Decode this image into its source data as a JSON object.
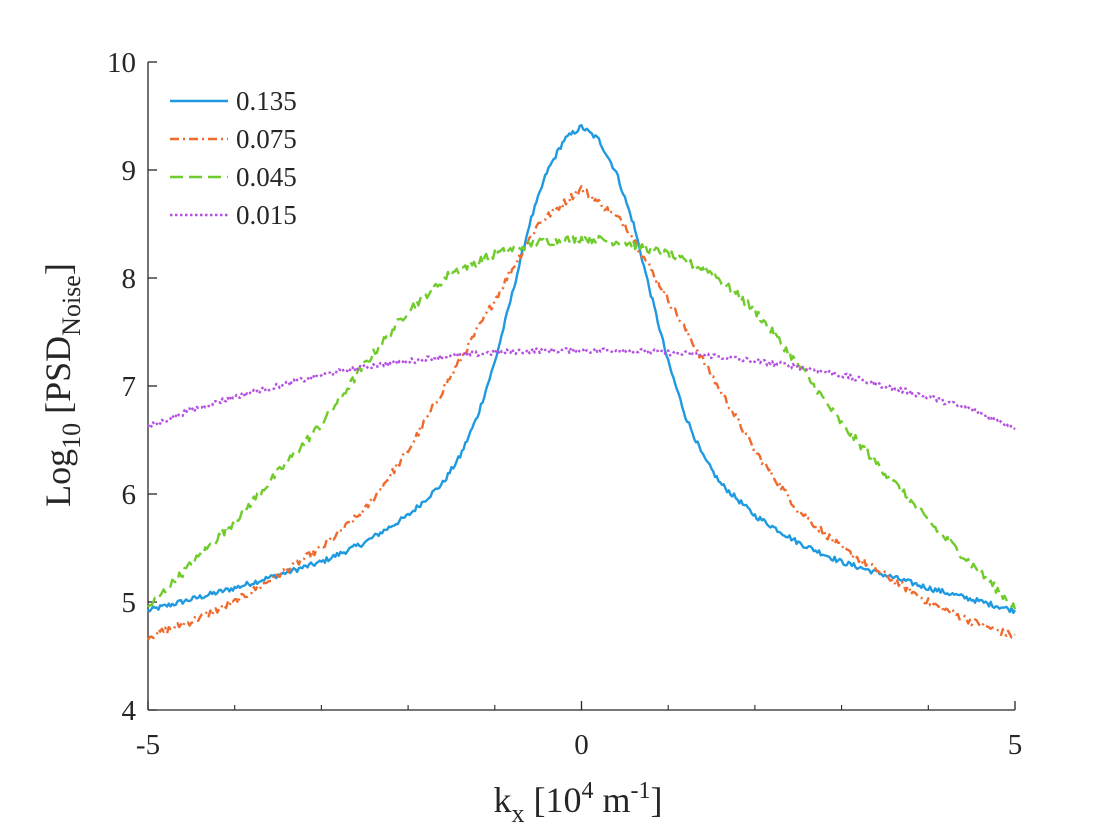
{
  "chart_data": {
    "type": "line",
    "title": "",
    "xlabel": "k_x [10^4 m^-1]",
    "ylabel": "Log_10 [PSD_Noise]",
    "axis_labels": {
      "x_main": "k",
      "x_sub": "x",
      "x_rest1": " [10",
      "x_sup1": "4",
      "x_rest2": " m",
      "x_sup2": "-1",
      "x_rest3": "]",
      "y_main": "Log",
      "y_sub": "10",
      "y_rest1": " [PSD",
      "y_sub2": "Noise",
      "y_rest2": "]"
    },
    "xlim": [
      -5,
      5
    ],
    "ylim": [
      4,
      10
    ],
    "x_ticks": [
      -5,
      0,
      5
    ],
    "x_tick_labels": [
      "-5",
      "0",
      "5"
    ],
    "x_minor_ticks": [
      -4,
      -3,
      -2,
      -1,
      1,
      2,
      3,
      4
    ],
    "y_ticks": [
      4,
      5,
      6,
      7,
      8,
      9,
      10
    ],
    "y_tick_labels": [
      "4",
      "5",
      "6",
      "7",
      "8",
      "9",
      "10"
    ],
    "grid": false,
    "legend_position": "top-left",
    "series": [
      {
        "name": "0.135",
        "color": "#1f9ae0",
        "style": "solid",
        "x": [
          -5,
          -4,
          -3,
          -2.5,
          -2,
          -1.6,
          -1.4,
          -1.2,
          -1,
          -0.8,
          -0.6,
          -0.4,
          -0.2,
          0,
          0.2,
          0.4,
          0.6,
          0.8,
          1,
          1.2,
          1.4,
          1.6,
          2,
          2.5,
          3,
          4,
          5
        ],
        "values": [
          4.92,
          5.13,
          5.37,
          5.55,
          5.8,
          6.1,
          6.35,
          6.72,
          7.22,
          7.85,
          8.5,
          8.98,
          9.28,
          9.4,
          9.28,
          8.98,
          8.5,
          7.85,
          7.22,
          6.72,
          6.35,
          6.1,
          5.8,
          5.55,
          5.37,
          5.13,
          4.92
        ],
        "noise": 0.025
      },
      {
        "name": "0.075",
        "color": "#f06a2e",
        "style": "dashdot",
        "x": [
          -5,
          -4.5,
          -4,
          -3.5,
          -3,
          -2.5,
          -2,
          -1.5,
          -1,
          -0.5,
          0,
          0.5,
          1,
          1.5,
          2,
          2.5,
          3,
          3.5,
          4,
          4.5,
          5
        ],
        "values": [
          4.68,
          4.82,
          5.0,
          5.25,
          5.5,
          5.85,
          6.4,
          7.1,
          7.8,
          8.5,
          8.83,
          8.5,
          7.8,
          7.1,
          6.4,
          5.85,
          5.5,
          5.25,
          5.0,
          4.82,
          4.68
        ],
        "noise": 0.035
      },
      {
        "name": "0.045",
        "color": "#6fcc2a",
        "style": "dashed",
        "x": [
          -5,
          -4.5,
          -4,
          -3.5,
          -3,
          -2.5,
          -2,
          -1.5,
          -1,
          -0.5,
          0,
          0.5,
          1,
          1.5,
          2,
          2.5,
          3,
          3.5,
          4,
          4.5,
          5
        ],
        "values": [
          4.95,
          5.35,
          5.75,
          6.2,
          6.65,
          7.2,
          7.7,
          8.05,
          8.22,
          8.33,
          8.37,
          8.33,
          8.22,
          8.05,
          7.7,
          7.2,
          6.65,
          6.2,
          5.75,
          5.35,
          4.95
        ],
        "noise": 0.04
      },
      {
        "name": "0.015",
        "color": "#b44fe0",
        "style": "dotted",
        "x": [
          -5,
          -4.5,
          -4,
          -3.5,
          -3,
          -2.5,
          -2,
          -1.5,
          -1,
          -0.5,
          0,
          0.5,
          1,
          1.5,
          2,
          2.5,
          3,
          3.5,
          4,
          4.5,
          5
        ],
        "values": [
          6.62,
          6.78,
          6.9,
          7.0,
          7.1,
          7.18,
          7.23,
          7.28,
          7.31,
          7.33,
          7.33,
          7.33,
          7.31,
          7.28,
          7.23,
          7.18,
          7.1,
          7.0,
          6.9,
          6.78,
          6.62
        ],
        "noise": 0.025
      }
    ]
  }
}
